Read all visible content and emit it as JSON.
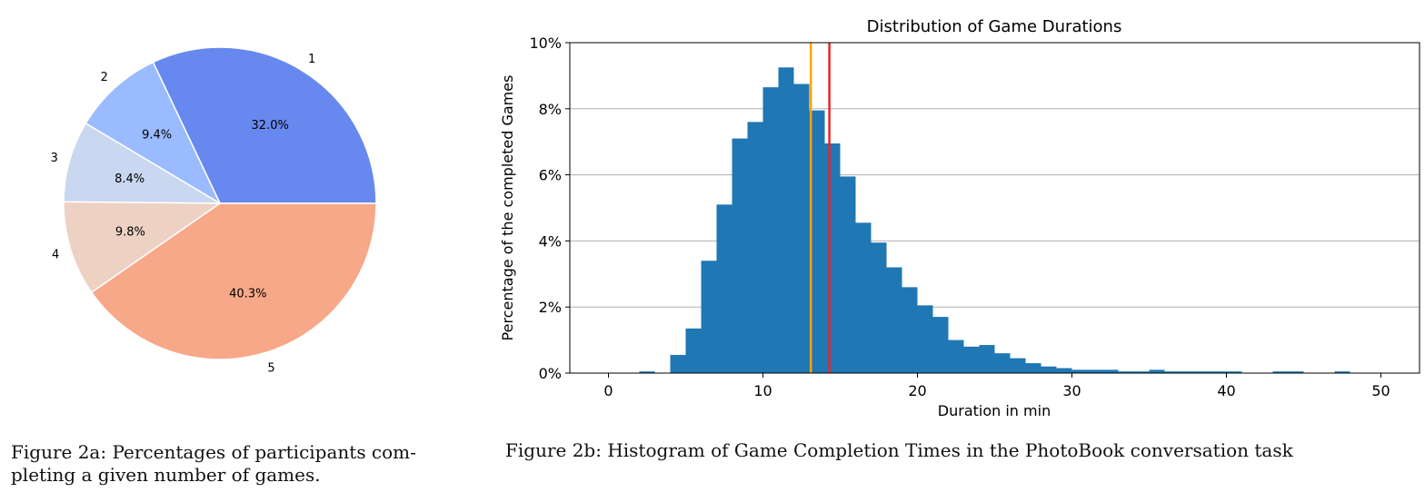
{
  "chart_data": [
    {
      "type": "pie",
      "title": "",
      "labels": [
        "1",
        "2",
        "3",
        "4",
        "5"
      ],
      "values": [
        32.0,
        9.4,
        8.4,
        9.8,
        40.3
      ],
      "pct_labels": [
        "32.0%",
        "9.4%",
        "8.4%",
        "9.8%",
        "40.3%"
      ],
      "colors": [
        "#6788EE",
        "#9ABBFF",
        "#C9D7F0",
        "#EDD1C2",
        "#F7A889"
      ],
      "start_angle": 0,
      "direction": "counterclockwise"
    },
    {
      "type": "bar",
      "subtype": "histogram",
      "title": "Distribution of Game Durations",
      "xlabel": "Duration in min",
      "ylabel": "Percentage of the completed Games",
      "xlim": [
        -2.5,
        52.5
      ],
      "ylim": [
        0,
        10
      ],
      "xticks": [
        0,
        10,
        20,
        30,
        40,
        50
      ],
      "yticks": [
        "0%",
        "2%",
        "4%",
        "6%",
        "8%",
        "10%"
      ],
      "ytick_values": [
        0,
        2,
        4,
        6,
        8,
        10
      ],
      "grid": "horizontal",
      "bar_color": "#1F77B4",
      "bin_width": 1.0,
      "bin_starts": [
        2,
        3,
        4,
        5,
        6,
        7,
        8,
        9,
        10,
        11,
        12,
        13,
        14,
        15,
        16,
        17,
        18,
        19,
        20,
        21,
        22,
        23,
        24,
        25,
        26,
        27,
        28,
        29,
        30,
        31,
        32,
        33,
        34,
        35,
        36,
        37,
        38,
        39,
        40,
        41,
        42,
        43,
        44,
        45,
        46,
        47
      ],
      "values": [
        0.05,
        0.0,
        0.55,
        1.35,
        3.4,
        5.1,
        7.1,
        7.6,
        8.65,
        9.25,
        8.75,
        7.95,
        6.95,
        5.95,
        4.55,
        3.95,
        3.2,
        2.6,
        2.05,
        1.7,
        1.0,
        0.8,
        0.85,
        0.6,
        0.45,
        0.3,
        0.2,
        0.15,
        0.1,
        0.1,
        0.1,
        0.05,
        0.05,
        0.1,
        0.05,
        0.05,
        0.05,
        0.05,
        0.05,
        0.0,
        0.0,
        0.05,
        0.05,
        0.0,
        0.0,
        0.05
      ],
      "vlines": [
        {
          "x": 13.1,
          "color": "#FFA500"
        },
        {
          "x": 14.3,
          "color": "#E8252A"
        }
      ]
    }
  ],
  "captions": {
    "fig_a_line1": "Figure 2a:  Percentages of participants com-",
    "fig_a_line2": "pleting a given number of games.",
    "fig_b": "Figure 2b: Histogram of Game Completion Times in the PhotoBook conversation task"
  }
}
